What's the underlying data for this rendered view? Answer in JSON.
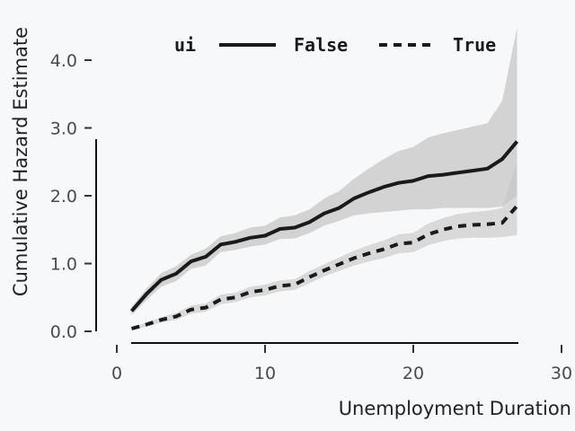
{
  "chart_data": {
    "type": "line",
    "xlabel": "Unemployment Duration",
    "ylabel": "Cumulative Hazard Estimate",
    "xlim": [
      0,
      30
    ],
    "ylim": [
      0,
      4.4
    ],
    "x_ticks": [
      "0",
      "10",
      "20",
      "30"
    ],
    "y_ticks": [
      "0.0",
      "1.0",
      "2.0",
      "3.0",
      "4.0"
    ],
    "grid": false,
    "legend": {
      "title": "ui",
      "placement": "top"
    },
    "series": [
      {
        "name": "False",
        "style": "solid",
        "color": "#1a1a1a",
        "band_color": "#bbbbbb",
        "x": [
          1,
          2,
          3,
          4,
          5,
          6,
          7,
          8,
          9,
          10,
          11,
          12,
          13,
          14,
          15,
          16,
          17,
          18,
          19,
          20,
          21,
          22,
          23,
          24,
          25,
          26,
          27
        ],
        "y": [
          0.3,
          0.55,
          0.76,
          0.85,
          1.03,
          1.1,
          1.28,
          1.32,
          1.38,
          1.41,
          1.51,
          1.53,
          1.61,
          1.74,
          1.82,
          1.96,
          2.05,
          2.13,
          2.19,
          2.22,
          2.29,
          2.31,
          2.34,
          2.37,
          2.4,
          2.54,
          2.8
        ],
        "lower": [
          0.24,
          0.46,
          0.66,
          0.74,
          0.92,
          0.97,
          1.17,
          1.2,
          1.25,
          1.28,
          1.36,
          1.37,
          1.45,
          1.56,
          1.63,
          1.71,
          1.74,
          1.76,
          1.78,
          1.8,
          1.8,
          1.82,
          1.82,
          1.82,
          1.82,
          1.84,
          2.0
        ],
        "upper": [
          0.36,
          0.63,
          0.86,
          0.96,
          1.13,
          1.22,
          1.4,
          1.45,
          1.53,
          1.56,
          1.68,
          1.71,
          1.8,
          1.96,
          2.07,
          2.25,
          2.4,
          2.54,
          2.66,
          2.72,
          2.86,
          2.92,
          2.97,
          3.02,
          3.07,
          3.4,
          4.48
        ]
      },
      {
        "name": "True",
        "style": "dashed",
        "color": "#1a1a1a",
        "band_color": "#c4c4c4",
        "x": [
          1,
          2,
          3,
          4,
          5,
          6,
          7,
          8,
          9,
          10,
          11,
          12,
          13,
          14,
          15,
          16,
          17,
          18,
          19,
          20,
          21,
          22,
          23,
          24,
          25,
          26,
          27
        ],
        "y": [
          0.04,
          0.1,
          0.17,
          0.22,
          0.32,
          0.35,
          0.47,
          0.5,
          0.58,
          0.61,
          0.67,
          0.69,
          0.8,
          0.9,
          0.99,
          1.08,
          1.15,
          1.21,
          1.29,
          1.31,
          1.43,
          1.5,
          1.55,
          1.57,
          1.58,
          1.6,
          1.85
        ],
        "lower": [
          0.02,
          0.07,
          0.13,
          0.17,
          0.26,
          0.29,
          0.4,
          0.43,
          0.5,
          0.53,
          0.59,
          0.61,
          0.71,
          0.81,
          0.89,
          0.97,
          1.03,
          1.08,
          1.15,
          1.17,
          1.27,
          1.33,
          1.37,
          1.38,
          1.38,
          1.39,
          1.42
        ],
        "upper": [
          0.06,
          0.13,
          0.21,
          0.27,
          0.38,
          0.41,
          0.54,
          0.57,
          0.66,
          0.69,
          0.75,
          0.77,
          0.89,
          0.99,
          1.09,
          1.19,
          1.27,
          1.34,
          1.43,
          1.45,
          1.59,
          1.67,
          1.73,
          1.76,
          1.78,
          1.82,
          2.5
        ]
      }
    ]
  }
}
